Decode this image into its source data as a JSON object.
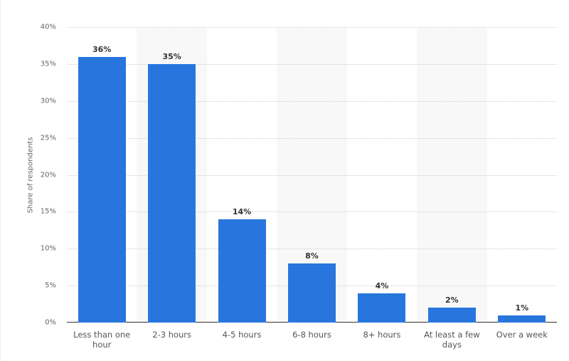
{
  "chart_data": {
    "type": "bar",
    "title": "",
    "xlabel": "",
    "ylabel": "Share of respondents",
    "categories": [
      "Less than one hour",
      "2-3 hours",
      "4-5 hours",
      "6-8 hours",
      "8+ hours",
      "At least a few days",
      "Over a week"
    ],
    "values": [
      36,
      35,
      14,
      8,
      4,
      2,
      1
    ],
    "value_labels": [
      "36%",
      "35%",
      "14%",
      "8%",
      "4%",
      "2%",
      "1%"
    ],
    "ylim": [
      0,
      40
    ],
    "yticks": [
      "0%",
      "5%",
      "10%",
      "15%",
      "20%",
      "25%",
      "30%",
      "35%",
      "40%"
    ],
    "grid": true,
    "legend": null,
    "bar_color": "#2876dd"
  }
}
